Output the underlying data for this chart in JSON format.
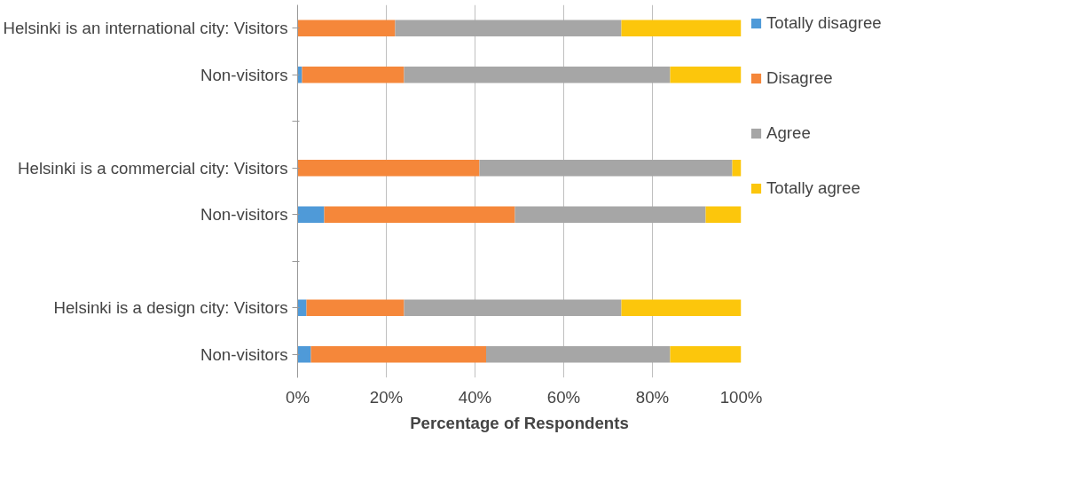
{
  "chart_data": {
    "type": "bar",
    "orientation": "horizontal",
    "stacked": true,
    "xlabel": "Percentage of Respondents",
    "categories": [
      "Helsinki is an international city: Visitors",
      "Non-visitors",
      null,
      "Helsinki is a commercial city: Visitors",
      "Non-visitors",
      null,
      "Helsinki is a design city: Visitors",
      "Non-visitors"
    ],
    "series": [
      {
        "name": "Totally disagree",
        "color": "#4f9ad8",
        "values": [
          0,
          1,
          null,
          0,
          6,
          null,
          2,
          3
        ]
      },
      {
        "name": "Disagree",
        "color": "#f5873a",
        "values": [
          22,
          23,
          null,
          41,
          43,
          null,
          22,
          39.5
        ]
      },
      {
        "name": "Agree",
        "color": "#a6a6a6",
        "values": [
          51,
          60,
          null,
          57,
          43,
          null,
          49,
          41.5
        ]
      },
      {
        "name": "Totally agree",
        "color": "#fcc60c",
        "values": [
          27,
          16,
          null,
          2,
          8,
          null,
          27,
          16
        ]
      }
    ],
    "xlim": [
      0,
      100
    ],
    "xticks": [
      {
        "value": 0,
        "label": "0%"
      },
      {
        "value": 20,
        "label": "20%"
      },
      {
        "value": 40,
        "label": "40%"
      },
      {
        "value": 60,
        "label": "60%"
      },
      {
        "value": 80,
        "label": "80%"
      },
      {
        "value": 100,
        "label": "100%"
      }
    ],
    "grid": "x",
    "legend": "right"
  }
}
